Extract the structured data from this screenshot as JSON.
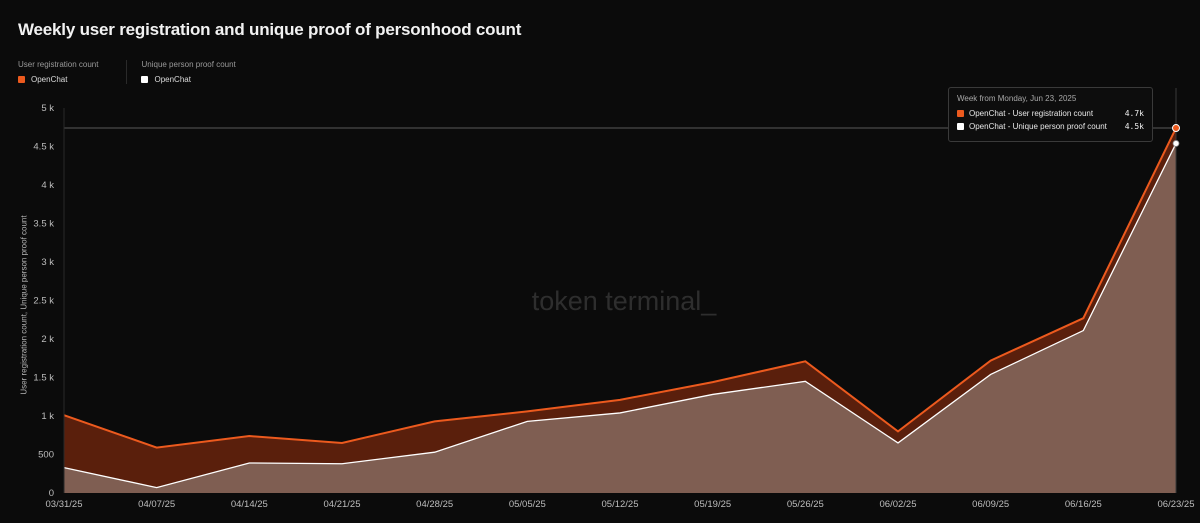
{
  "title": "Weekly user registration and unique proof of personhood count",
  "legend": {
    "groups": [
      {
        "title": "User registration count",
        "item": "OpenChat",
        "color": "#ec5a1e"
      },
      {
        "title": "Unique person proof count",
        "item": "OpenChat",
        "color": "#ffffff"
      }
    ]
  },
  "watermark": "token terminal_",
  "tooltip": {
    "title": "Week from Monday, Jun 23, 2025",
    "rows": [
      {
        "label": "OpenChat - User registration count",
        "value": "4.7k",
        "color": "#ec5a1e"
      },
      {
        "label": "OpenChat - Unique person proof count",
        "value": "4.5k",
        "color": "#ffffff"
      }
    ]
  },
  "chart_data": {
    "type": "area",
    "title": "Weekly user registration and unique proof of personhood count",
    "ylabel": "User registration count, Unique person proof count",
    "xlabel": "",
    "x": [
      "03/31/25",
      "04/07/25",
      "04/14/25",
      "04/21/25",
      "04/28/25",
      "05/05/25",
      "05/12/25",
      "05/19/25",
      "05/26/25",
      "06/02/25",
      "06/09/25",
      "06/16/25",
      "06/23/25"
    ],
    "ylim": [
      0,
      5000
    ],
    "yticks": [
      0,
      500,
      1000,
      1500,
      2000,
      2500,
      3000,
      3500,
      4000,
      4500,
      5000
    ],
    "ytick_labels": [
      "0",
      "500",
      "1 k",
      "1.5 k",
      "2 k",
      "2.5 k",
      "3 k",
      "3.5 k",
      "4 k",
      "4.5 k",
      "5 k"
    ],
    "grid": false,
    "legend": "top-left",
    "series": [
      {
        "name": "User registration count",
        "values": [
          1010,
          590,
          740,
          650,
          930,
          1060,
          1210,
          1440,
          1710,
          800,
          1720,
          2270,
          4740
        ],
        "color": "#ec5a1e"
      },
      {
        "name": "Unique person proof count",
        "values": [
          330,
          70,
          390,
          380,
          530,
          930,
          1040,
          1280,
          1450,
          650,
          1540,
          2110,
          4540
        ],
        "color": "#ffffff"
      }
    ]
  }
}
